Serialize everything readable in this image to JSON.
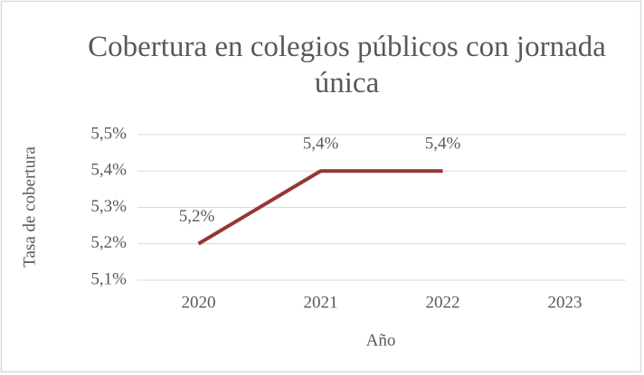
{
  "chart_data": {
    "type": "line",
    "title": "Cobertura en colegios públicos con jornada única",
    "x_label": "Año",
    "y_label": "Tasa de cobertura",
    "categories": [
      "2020",
      "2021",
      "2022",
      "2023"
    ],
    "series": [
      {
        "name": "Tasa de cobertura",
        "color": "#953735",
        "values": [
          5.2,
          5.4,
          5.4,
          null
        ],
        "value_labels": [
          "5,2%",
          "5,4%",
          "5,4%",
          null
        ]
      }
    ],
    "ylim": [
      5.1,
      5.5
    ],
    "yticks": [
      {
        "value": 5.1,
        "label": "5,1%"
      },
      {
        "value": 5.2,
        "label": "5,2%"
      },
      {
        "value": 5.3,
        "label": "5,3%"
      },
      {
        "value": 5.4,
        "label": "5,4%"
      },
      {
        "value": 5.5,
        "label": "5,5%"
      }
    ],
    "grid": true
  }
}
